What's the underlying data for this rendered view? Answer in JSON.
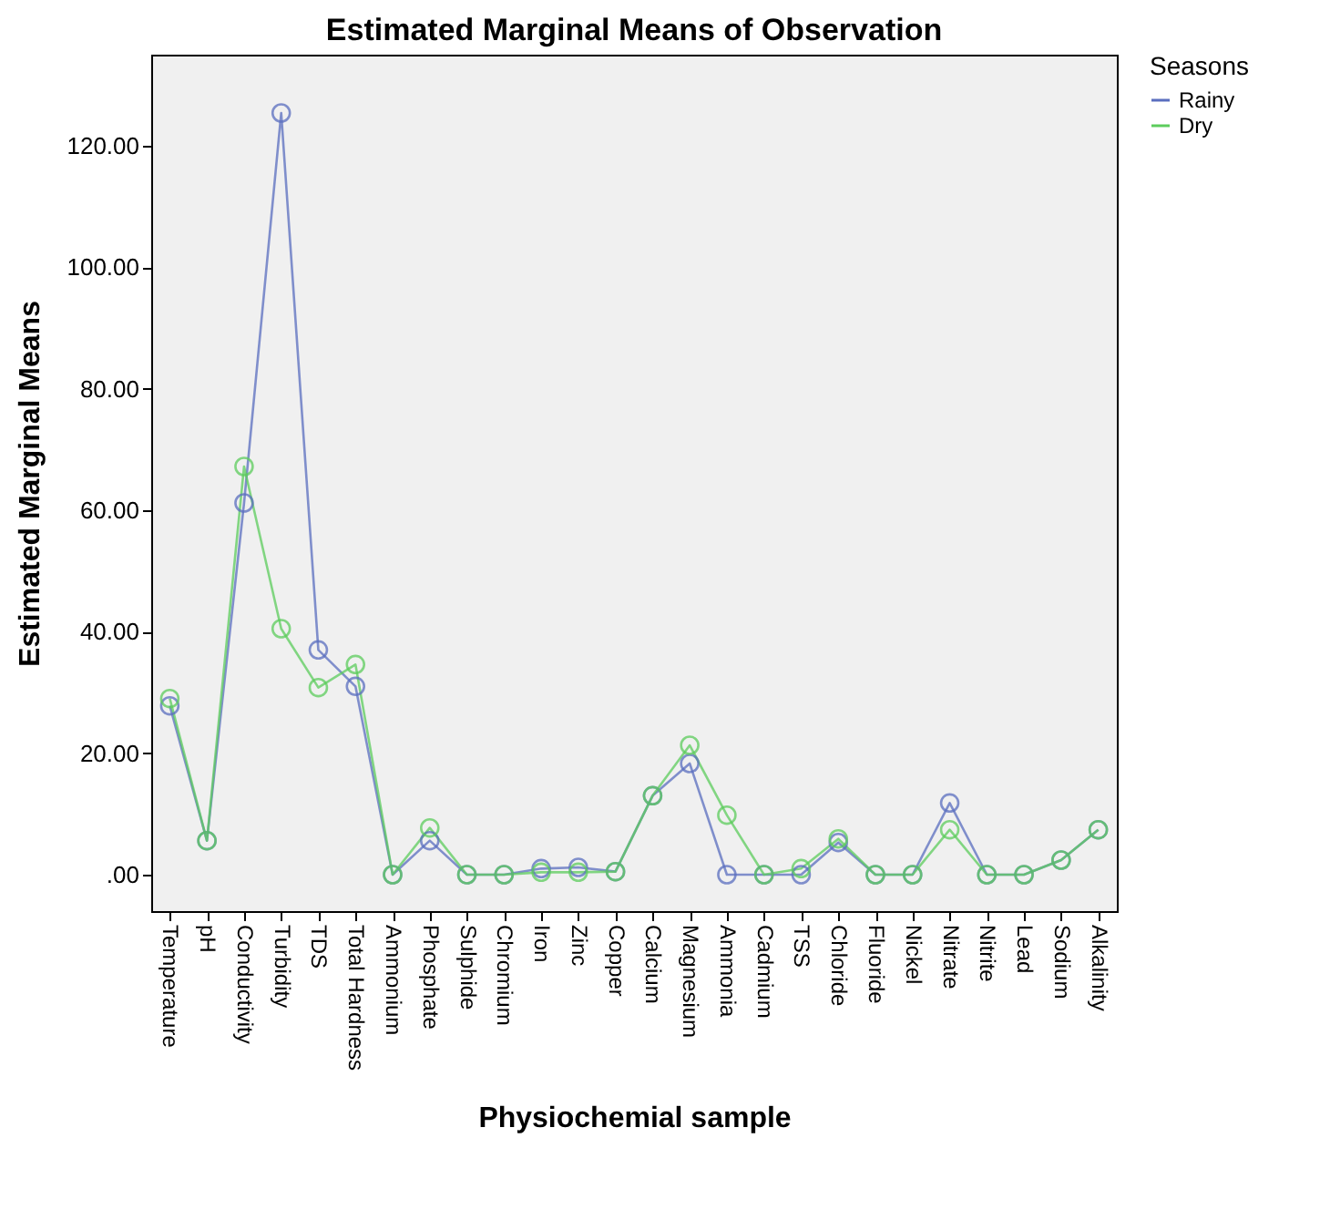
{
  "chart_data": {
    "type": "line",
    "title": "Estimated Marginal Means of Observation",
    "xlabel": "Physiochemial sample",
    "ylabel": "Estimated Marginal Means",
    "legend_title": "Seasons",
    "categories": [
      "Temperature",
      "pH",
      "Conductivity",
      "Turbidity",
      "TDS",
      "Total Hardness",
      "Ammonium",
      "Phosphate",
      "Sulphide",
      "Chromium",
      "Iron",
      "Zinc",
      "Copper",
      "Calcium",
      "Magnesium",
      "Ammonia",
      "Cadmium",
      "TSS",
      "Chloride",
      "Fluoride",
      "Nickel",
      "Nitrate",
      "Nitrite",
      "Lead",
      "Sodium",
      "Alkalinity"
    ],
    "series": [
      {
        "name": "Rainy",
        "color": "#5a6ebf",
        "values": [
          27.8,
          5.6,
          61.2,
          125.4,
          37,
          31,
          0,
          5.6,
          0,
          0,
          1,
          1.2,
          0.5,
          13,
          18.3,
          0,
          0,
          0,
          5.3,
          0,
          0,
          11.8,
          0,
          0,
          2.4,
          7.4
        ]
      },
      {
        "name": "Dry",
        "color": "#5ccc5c",
        "values": [
          29,
          5.6,
          67.2,
          40.5,
          30.8,
          34.6,
          0,
          7.7,
          0,
          0,
          0.4,
          0.4,
          0.5,
          13,
          21.3,
          9.8,
          0,
          1,
          5.9,
          0,
          0,
          7.4,
          0,
          0,
          2.4,
          7.4
        ]
      }
    ],
    "ylim": [
      -6,
      135
    ],
    "yticks": [
      {
        "value": 0,
        "label": ".00"
      },
      {
        "value": 20,
        "label": "20.00"
      },
      {
        "value": 40,
        "label": "40.00"
      },
      {
        "value": 60,
        "label": "60.00"
      },
      {
        "value": 80,
        "label": "80.00"
      },
      {
        "value": 100,
        "label": "100.00"
      },
      {
        "value": 120,
        "label": "120.00"
      }
    ],
    "marker": "circle",
    "line_style": "solid",
    "legend": "right",
    "grid": false
  }
}
